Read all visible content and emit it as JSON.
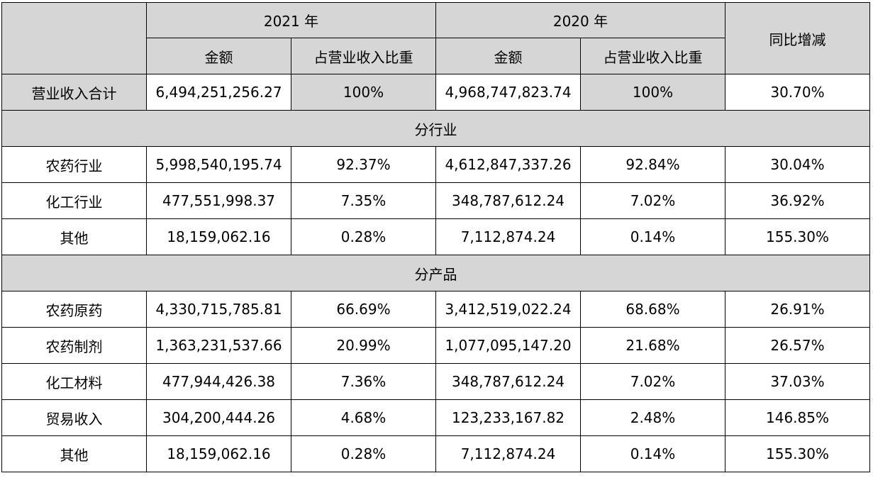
{
  "header": {
    "year_2021": "2021 年",
    "year_2020": "2020 年",
    "yoy": "同比增减",
    "amount_2021": "金额",
    "ratio_2021": "占营业收入比重",
    "amount_2020": "金额",
    "ratio_2020": "占营业收入比重"
  },
  "total": {
    "label": "营业收入合计",
    "amount_2021": "6,494,251,256.27",
    "ratio_2021": "100%",
    "amount_2020": "4,968,747,823.74",
    "ratio_2020": "100%",
    "yoy": "30.70%"
  },
  "section_industry": {
    "title": "分行业"
  },
  "industry_rows": [
    {
      "label": "农药行业",
      "amount_2021": "5,998,540,195.74",
      "ratio_2021": "92.37%",
      "amount_2020": "4,612,847,337.26",
      "ratio_2020": "92.84%",
      "yoy": "30.04%"
    },
    {
      "label": "化工行业",
      "amount_2021": "477,551,998.37",
      "ratio_2021": "7.35%",
      "amount_2020": "348,787,612.24",
      "ratio_2020": "7.02%",
      "yoy": "36.92%"
    },
    {
      "label": "其他",
      "amount_2021": "18,159,062.16",
      "ratio_2021": "0.28%",
      "amount_2020": "7,112,874.24",
      "ratio_2020": "0.14%",
      "yoy": "155.30%"
    }
  ],
  "section_product": {
    "title": "分产品"
  },
  "product_rows": [
    {
      "label": "农药原药",
      "amount_2021": "4,330,715,785.81",
      "ratio_2021": "66.69%",
      "amount_2020": "3,412,519,022.24",
      "ratio_2020": "68.68%",
      "yoy": "26.91%"
    },
    {
      "label": "农药制剂",
      "amount_2021": "1,363,231,537.66",
      "ratio_2021": "20.99%",
      "amount_2020": "1,077,095,147.20",
      "ratio_2020": "21.68%",
      "yoy": "26.57%"
    },
    {
      "label": "化工材料",
      "amount_2021": "477,944,426.38",
      "ratio_2021": "7.36%",
      "amount_2020": "348,787,612.24",
      "ratio_2020": "7.02%",
      "yoy": "37.03%"
    },
    {
      "label": "贸易收入",
      "amount_2021": "304,200,444.26",
      "ratio_2021": "4.68%",
      "amount_2020": "123,233,167.82",
      "ratio_2020": "2.48%",
      "yoy": "146.85%"
    },
    {
      "label": "其他",
      "amount_2021": "18,159,062.16",
      "ratio_2021": "0.28%",
      "amount_2020": "7,112,874.24",
      "ratio_2020": "0.14%",
      "yoy": "155.30%"
    }
  ],
  "colors": {
    "header_bg": "#d6d6d6",
    "cell_bg": "#ffffff",
    "border": "#000000"
  }
}
